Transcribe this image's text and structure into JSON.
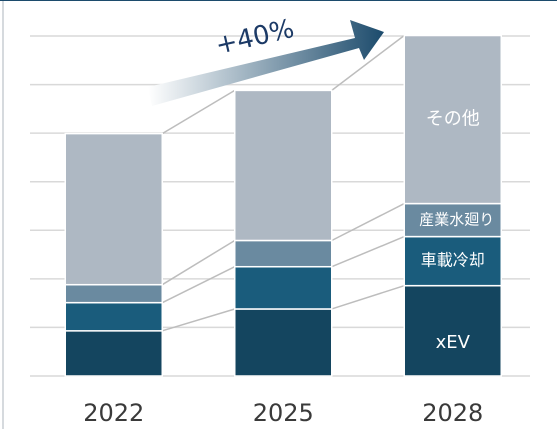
{
  "chart_data": {
    "type": "bar",
    "stacked": true,
    "annotation": "+40%",
    "categories": [
      "2022",
      "2025",
      "2028"
    ],
    "series": [
      {
        "name": "xEV",
        "color": "#14455f",
        "values": [
          0.93,
          1.38,
          1.86
        ]
      },
      {
        "name": "車載冷却",
        "color": "#1a5c7c",
        "values": [
          0.58,
          0.87,
          1.01
        ]
      },
      {
        "name": "産業水廻り",
        "color": "#6a8aa0",
        "values": [
          0.37,
          0.54,
          0.68
        ]
      },
      {
        "name": "その他",
        "color": "#aeb8c3",
        "values": [
          3.11,
          3.09,
          3.46
        ]
      }
    ],
    "ylim": [
      0,
      7
    ],
    "yticks": [
      0,
      1,
      2,
      3,
      4,
      5,
      6,
      7
    ],
    "grid": true
  }
}
